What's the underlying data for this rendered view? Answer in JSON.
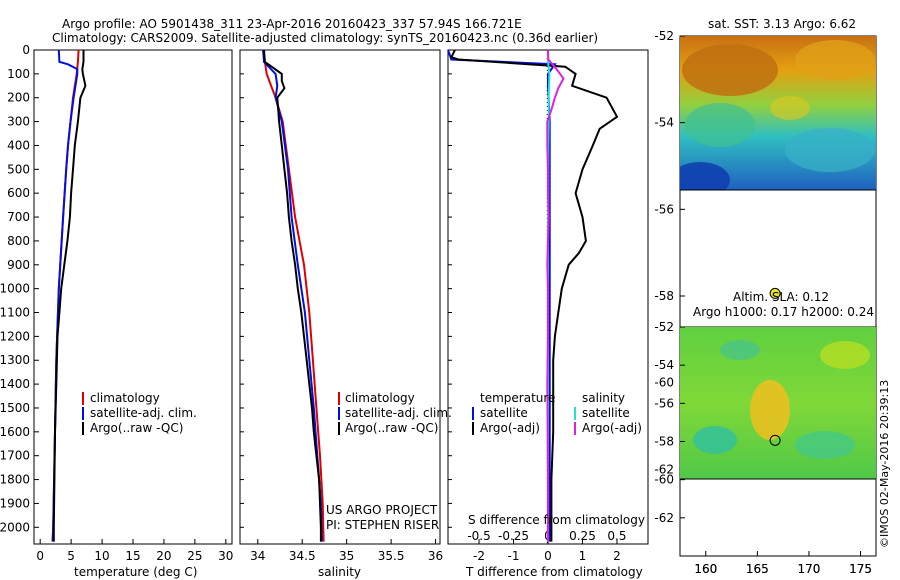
{
  "header": {
    "line1": "Argo profile: AO 5901438_311 23-Apr-2016 20160423_337 57.94S 166.721E",
    "line2": "Climatology: CARS2009. Satellite-adjusted climatology: synTS_20160423.nc (0.36d earlier)"
  },
  "credit": "©IMOS 02-May-2016 20:39:13",
  "colors": {
    "climatology": "#e00000",
    "satellite": "#0010e0",
    "argo": "#000000",
    "sat_salinity": "#20e0e0",
    "argo_salinity": "#e020e0"
  },
  "chart_data": [
    {
      "id": "temperature",
      "type": "line",
      "xlabel": "temperature (deg C)",
      "xlim": [
        -1,
        31
      ],
      "xticks": [
        0,
        5,
        10,
        15,
        20,
        25,
        30
      ],
      "ylim": [
        0,
        2070
      ],
      "yticks": [
        0,
        100,
        200,
        300,
        400,
        500,
        600,
        700,
        800,
        900,
        1000,
        1100,
        1200,
        1300,
        1400,
        1500,
        1600,
        1700,
        1800,
        1900,
        2000
      ],
      "legend": [
        "climatology",
        "satellite-adj. clim.",
        "Argo(..raw -QC)"
      ],
      "series": [
        {
          "name": "climatology",
          "color": "red",
          "depth": [
            0,
            50,
            100,
            200,
            300,
            400,
            500,
            700,
            1000,
            1300,
            1600,
            2000,
            2060
          ],
          "values": [
            6.2,
            6.1,
            5.9,
            5.3,
            4.9,
            4.5,
            4.2,
            3.7,
            3.0,
            2.6,
            2.4,
            2.1,
            2.0
          ]
        },
        {
          "name": "satellite-adj. clim.",
          "color": "blue",
          "depth": [
            0,
            50,
            60,
            80,
            100,
            200,
            300,
            400,
            500,
            700,
            1000,
            1300,
            1600,
            2000,
            2060
          ],
          "values": [
            3.0,
            3.1,
            4.5,
            6.0,
            6.0,
            5.4,
            4.9,
            4.5,
            4.2,
            3.7,
            3.0,
            2.6,
            2.4,
            2.1,
            2.0
          ]
        },
        {
          "name": "Argo(..raw -QC)",
          "color": "black",
          "depth": [
            0,
            50,
            80,
            100,
            150,
            200,
            300,
            400,
            500,
            600,
            700,
            800,
            900,
            1000,
            1100,
            1200,
            1400,
            1600,
            1800,
            2000,
            2060
          ],
          "values": [
            7.0,
            7.0,
            6.8,
            6.9,
            7.3,
            6.5,
            6.1,
            5.6,
            5.3,
            5.0,
            4.8,
            4.4,
            3.9,
            3.4,
            3.1,
            2.8,
            2.6,
            2.4,
            2.3,
            2.2,
            2.2
          ]
        }
      ]
    },
    {
      "id": "salinity",
      "type": "line",
      "xlabel": "salinity",
      "xlim": [
        33.8,
        36.05
      ],
      "xticks": [
        34,
        34.5,
        35,
        35.5,
        36
      ],
      "xtick_labels": [
        "34",
        "34.5",
        "35",
        "35.5",
        "36"
      ],
      "ylim": [
        0,
        2070
      ],
      "legend": [
        "climatology",
        "satellite-adj. clim.",
        "Argo(..raw -QC)"
      ],
      "annotations": [
        "US ARGO PROJECT",
        "PI: STEPHEN RISER"
      ],
      "series": [
        {
          "name": "climatology",
          "color": "red",
          "depth": [
            0,
            100,
            150,
            200,
            300,
            500,
            700,
            900,
            1100,
            1300,
            1500,
            1700,
            1900,
            2060
          ],
          "values": [
            34.06,
            34.1,
            34.15,
            34.2,
            34.28,
            34.35,
            34.42,
            34.52,
            34.58,
            34.62,
            34.66,
            34.7,
            34.73,
            34.74
          ]
        },
        {
          "name": "satellite-adj. clim.",
          "color": "blue",
          "depth": [
            0,
            50,
            100,
            150,
            200,
            300,
            500,
            700,
            900,
            1100,
            1300,
            1500,
            1700,
            1900,
            2060
          ],
          "values": [
            34.06,
            34.07,
            34.2,
            34.22,
            34.2,
            34.27,
            34.34,
            34.38,
            34.45,
            34.53,
            34.58,
            34.63,
            34.67,
            34.71,
            34.72
          ]
        },
        {
          "name": "Argo(..raw -QC)",
          "color": "black",
          "depth": [
            0,
            50,
            100,
            130,
            160,
            200,
            300,
            400,
            500,
            600,
            700,
            800,
            900,
            1000,
            1100,
            1200,
            1300,
            1400,
            1500,
            1600,
            1700,
            1800,
            1900,
            2000,
            2060
          ],
          "values": [
            34.07,
            34.08,
            34.27,
            34.27,
            34.3,
            34.22,
            34.24,
            34.27,
            34.3,
            34.33,
            34.35,
            34.38,
            34.42,
            34.45,
            34.49,
            34.52,
            34.55,
            34.58,
            34.61,
            34.63,
            34.66,
            34.69,
            34.7,
            34.71,
            34.71
          ]
        }
      ]
    },
    {
      "id": "difference",
      "type": "line",
      "xlabel": "T difference from climatology",
      "secondary_xlabel": "S difference from climatology",
      "xlim": [
        -2.9,
        2.9
      ],
      "xticks": [
        -2,
        -1,
        0,
        1,
        2
      ],
      "sticks": [
        -0.5,
        -0.25,
        0,
        0.25,
        0.5
      ],
      "stick_labels": [
        "-0.5",
        "-0.25",
        "0",
        "0.25",
        "0.5"
      ],
      "ylim": [
        0,
        2070
      ],
      "legend_temperature": [
        "temperature",
        "satellite",
        "Argo(-adj)"
      ],
      "legend_salinity": [
        "salinity",
        "satellite",
        "Argo(-adj)"
      ],
      "series": [
        {
          "name": "temperature satellite",
          "color": "blue",
          "depth": [
            0,
            40,
            60,
            80,
            100,
            150,
            300,
            500,
            1000,
            1500,
            2000,
            2060
          ],
          "values": [
            -2.9,
            -2.8,
            0.2,
            0.1,
            0.0,
            0.0,
            0.05,
            0.05,
            0.05,
            0.05,
            0.05,
            0.05
          ]
        },
        {
          "name": "temperature Argo(-adj)",
          "color": "black",
          "depth": [
            0,
            30,
            40,
            70,
            100,
            150,
            200,
            280,
            330,
            400,
            500,
            600,
            700,
            800,
            850,
            900,
            1000,
            1100,
            1200,
            1300,
            1500,
            1600,
            1800,
            1900,
            2000,
            2060
          ],
          "values": [
            -2.7,
            -2.8,
            -2.6,
            0.5,
            0.8,
            0.7,
            1.7,
            2.0,
            1.5,
            1.3,
            1.0,
            0.8,
            1.0,
            1.1,
            0.9,
            0.6,
            0.4,
            0.3,
            0.2,
            0.15,
            0.15,
            0.15,
            0.1,
            0.1,
            0.1,
            0.1
          ]
        },
        {
          "name": "salinity satellite",
          "color": "cyan",
          "depth": [
            0,
            50,
            100,
            200,
            300,
            400,
            600,
            800,
            1000,
            1500,
            2000,
            2060
          ],
          "values": [
            0.0,
            0.0,
            0.04,
            0.02,
            0.02,
            0.01,
            0.01,
            0.0,
            0.0,
            0.0,
            0.0,
            0.0
          ]
        },
        {
          "name": "salinity Argo(-adj)",
          "color": "magenta",
          "depth": [
            0,
            40,
            80,
            120,
            160,
            200,
            250,
            300,
            400,
            500,
            600,
            700,
            800,
            900,
            1000,
            1200,
            1400,
            1600,
            1800,
            2000,
            2060
          ],
          "values": [
            0.0,
            0.01,
            0.25,
            0.45,
            0.3,
            0.2,
            0.1,
            -0.02,
            -0.02,
            0.0,
            0.0,
            0.02,
            0.0,
            -0.02,
            0.0,
            0.0,
            -0.02,
            -0.01,
            0.0,
            0.0,
            0.0
          ]
        }
      ]
    },
    {
      "id": "sst-map",
      "type": "heatmap",
      "title": "sat. SST: 3.13 Argo: 6.62",
      "xlim": [
        157.5,
        176.5
      ],
      "xticks": [
        160,
        165,
        170,
        175
      ],
      "ylim": [
        -64,
        -52
      ],
      "yticks": [
        -52,
        -54,
        -56,
        -58,
        -60,
        -62
      ],
      "data_extent_lat": [
        -60,
        -52
      ],
      "marker": {
        "lon": 166.72,
        "lat": -57.94,
        "fill": "#e8e820"
      }
    },
    {
      "id": "sla-map",
      "type": "heatmap",
      "title": "Altim. SLA: 0.12",
      "subtitle": "Argo h1000: 0.17 h2000: 0.24",
      "xlim": [
        157.5,
        176.5
      ],
      "xticks": [
        160,
        165,
        170,
        175
      ],
      "ylim": [
        -64,
        -52
      ],
      "yticks": [
        -52,
        -54,
        -56,
        -58,
        -60,
        -62
      ],
      "data_extent_lat": [
        -60,
        -52
      ],
      "marker": {
        "lon": 166.72,
        "lat": -57.94,
        "fill": "none"
      }
    }
  ]
}
